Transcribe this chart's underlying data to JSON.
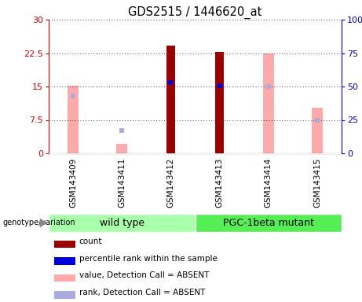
{
  "title": "GDS2515 / 1446620_at",
  "samples": [
    "GSM143409",
    "GSM143411",
    "GSM143412",
    "GSM143413",
    "GSM143414",
    "GSM143415"
  ],
  "x_positions": [
    0,
    1,
    2,
    3,
    4,
    5
  ],
  "count_values": [
    null,
    null,
    24.2,
    22.8,
    null,
    null
  ],
  "count_color": "#990000",
  "rank_values": [
    null,
    null,
    15.8,
    15.1,
    null,
    null
  ],
  "rank_color": "#0000dd",
  "absent_value_heights": [
    15.2,
    2.2,
    null,
    null,
    22.5,
    10.2
  ],
  "absent_value_color": "#ffaaaa",
  "absent_rank_heights_pct": [
    43,
    17,
    null,
    null,
    50,
    25
  ],
  "absent_rank_color": "#aaaadd",
  "ylim_left": [
    0,
    30
  ],
  "ylim_right": [
    0,
    100
  ],
  "yticks_left": [
    0,
    7.5,
    15,
    22.5,
    30
  ],
  "yticks_right": [
    0,
    25,
    50,
    75,
    100
  ],
  "ytick_labels_left": [
    "0",
    "7.5",
    "15",
    "22.5",
    "30"
  ],
  "ytick_labels_right": [
    "0",
    "25",
    "50",
    "75",
    "100%"
  ],
  "left_axis_color": "#cc0000",
  "right_axis_color": "#0000cc",
  "grid_color": "#000000",
  "plot_bg_color": "#ffffff",
  "sample_box_color": "#cccccc",
  "wild_type_color": "#aaffaa",
  "mutant_color": "#55ee55",
  "wild_type_label": "wild type",
  "mutant_label": "PGC-1beta mutant",
  "genotype_label": "genotype/variation",
  "legend_items": [
    "count",
    "percentile rank within the sample",
    "value, Detection Call = ABSENT",
    "rank, Detection Call = ABSENT"
  ],
  "legend_colors": [
    "#990000",
    "#0000dd",
    "#ffaaaa",
    "#aaaadd"
  ],
  "count_bar_width": 0.18,
  "absent_bar_width": 0.22
}
